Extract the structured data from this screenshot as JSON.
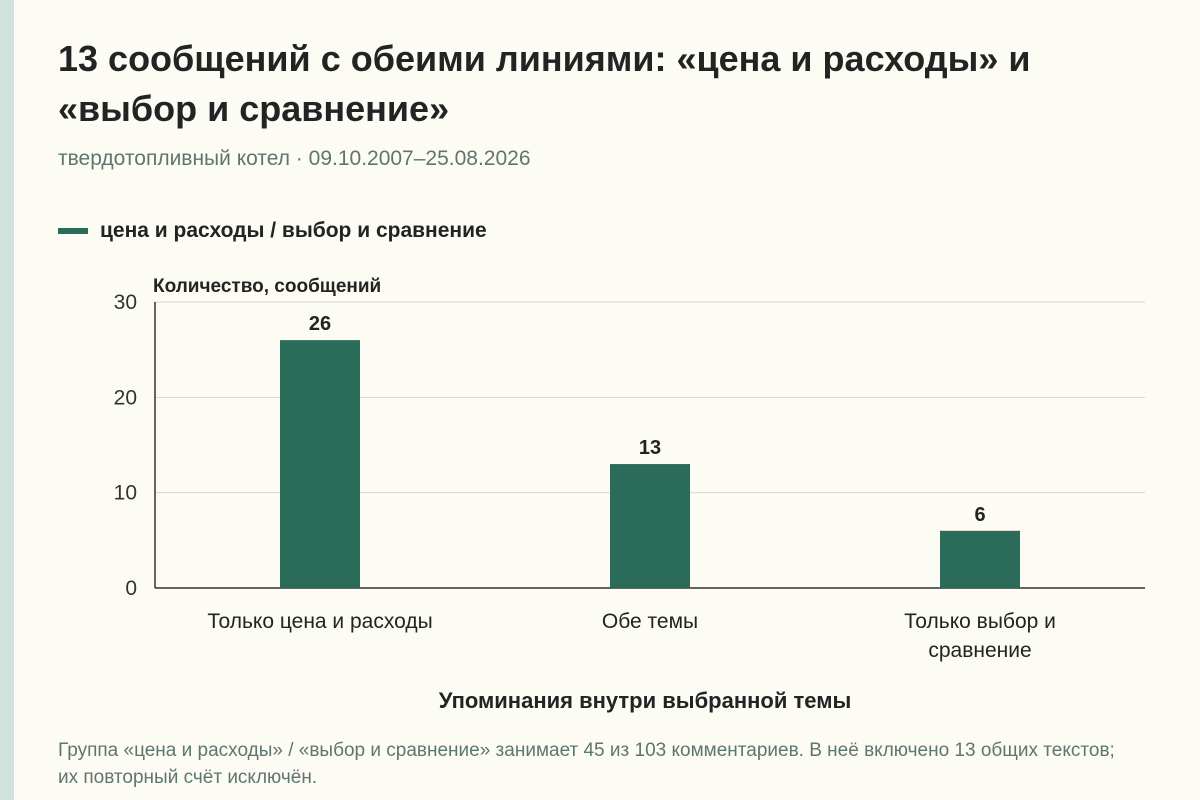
{
  "title": "13 сообщений с обеими линиями: «цена и расходы» и «выбор и сравнение»",
  "subtitle": "твердотопливный котел · 09.10.2007–25.08.2026",
  "footnote": "Группа «цена и расходы» / «выбор и сравнение» занимает 45 из 103 комментариев. В неё включено 13 общих текстов; их повторный счёт исключён.",
  "colors": {
    "bar": "#2a6b59",
    "grid": "#d9d6cc",
    "axis": "#333333",
    "accent_strip": "#cfe3dc"
  },
  "chart_data": {
    "type": "bar",
    "categories": [
      "Только цена и расходы",
      "Обе темы",
      "Только выбор и сравнение"
    ],
    "series": [
      {
        "name": "цена и расходы / выбор и сравнение",
        "values": [
          26,
          13,
          6
        ]
      }
    ],
    "data_labels": [
      "26",
      "13",
      "6"
    ],
    "ylabel": "Количество, сообщений",
    "xlabel": "Упоминания внутри выбранной темы",
    "ylim": [
      0,
      30
    ],
    "yticks": [
      0,
      10,
      20,
      30
    ],
    "grid": true,
    "legend_position": "top-left"
  }
}
